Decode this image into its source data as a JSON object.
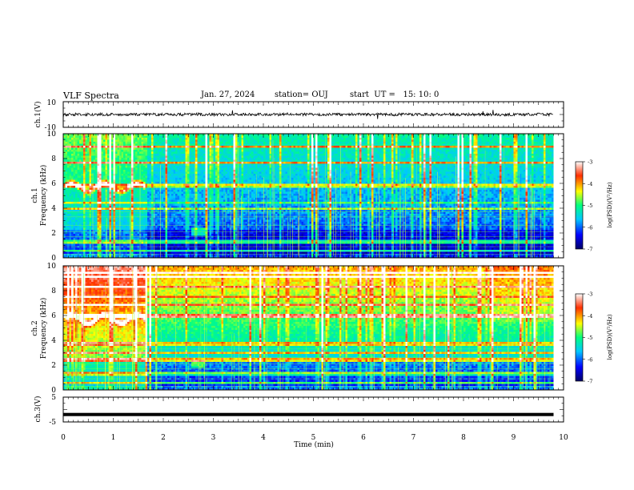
{
  "header": {
    "title": "VLF Spectra",
    "date": "Jan. 27, 2024",
    "station": "station= OUJ",
    "start": "start  UT =   15: 10: 0"
  },
  "chart_data": [
    {
      "type": "line",
      "name": "ch1-waveform",
      "ylabel": "ch.1(V)",
      "ylim": [
        -10,
        10
      ],
      "ytick_labels": [
        "10",
        "-10"
      ],
      "xlim": [
        0,
        10
      ],
      "series_level": [
        0,
        0
      ],
      "data_extent_x": [
        0,
        9.8
      ]
    },
    {
      "type": "heatmap",
      "name": "ch1-spectrogram",
      "ylabel_line1": "ch.1",
      "ylabel_line2": "Frequency  (kHz)",
      "ylim": [
        0,
        10
      ],
      "ytick_labels": [
        "0",
        "2",
        "4",
        "6",
        "8",
        "10"
      ],
      "xlim": [
        0,
        10
      ],
      "data_extent_x": [
        0,
        9.8
      ],
      "colorbar": {
        "label": "log(PSD)(V²/Hz)",
        "range": [
          -7,
          -3
        ],
        "tick_labels": [
          "-7",
          "-6",
          "-5",
          "-4",
          "-3"
        ]
      }
    },
    {
      "type": "heatmap",
      "name": "ch2-spectrogram",
      "ylabel_line1": "ch.2",
      "ylabel_line2": "Frequency  (kHz)",
      "ylim": [
        0,
        10
      ],
      "ytick_labels": [
        "0",
        "2",
        "4",
        "6",
        "8",
        "10"
      ],
      "xlim": [
        0,
        10
      ],
      "data_extent_x": [
        0,
        9.8
      ],
      "colorbar": {
        "label": "log(PSD)(V²/Hz)",
        "range": [
          -7,
          -3
        ],
        "tick_labels": [
          "-7",
          "-6",
          "-5",
          "-4",
          "-3"
        ]
      }
    },
    {
      "type": "line",
      "name": "ch3-waveform",
      "ylabel": "ch.3(V)",
      "ylim": [
        -5,
        5
      ],
      "ytick_labels": [
        "5",
        "-5"
      ],
      "xlim": [
        0,
        10
      ],
      "xlabel": "Time  (min)",
      "xtick_labels": [
        "0",
        "1",
        "2",
        "3",
        "4",
        "5",
        "6",
        "7",
        "8",
        "9",
        "10"
      ],
      "series_level": [
        -2,
        -2
      ],
      "data_extent_x": [
        0,
        9.8
      ]
    }
  ],
  "colors": {
    "waveform": "#000000",
    "frame": "#000000",
    "colormap": [
      "#000066",
      "#0000ff",
      "#00c8ff",
      "#00ff80",
      "#ffff00",
      "#ff3000",
      "#ffffff"
    ]
  }
}
